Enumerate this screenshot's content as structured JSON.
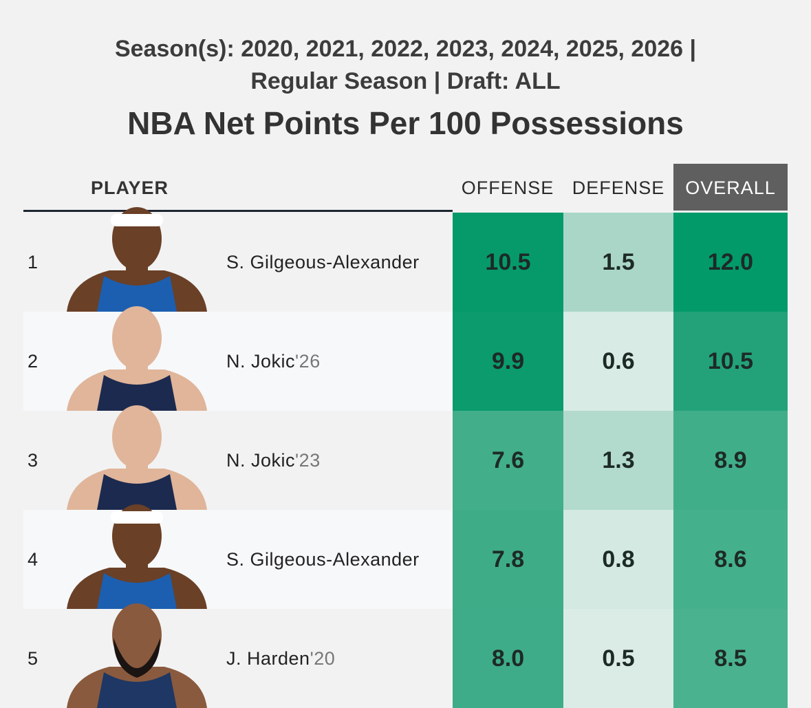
{
  "header": {
    "subtitle_line1": "Season(s): 2020, 2021, 2022, 2023, 2024, 2025, 2026 |",
    "subtitle_line2": "Regular Season | Draft: ALL",
    "title": "NBA Net Points Per 100 Possessions"
  },
  "columns": {
    "player": "PLAYER",
    "offense": "OFFENSE",
    "defense": "DEFENSE",
    "overall": "OVERALL"
  },
  "rows": [
    {
      "rank": "1",
      "name": "S. Gilgeous-Alexander",
      "year": "",
      "offense": "10.5",
      "defense": "1.5",
      "overall": "12.0",
      "avatar_icon": "player-headshot-icon"
    },
    {
      "rank": "2",
      "name": "N. Jokic",
      "year": "'26",
      "offense": "9.9",
      "defense": "0.6",
      "overall": "10.5",
      "avatar_icon": "player-headshot-icon"
    },
    {
      "rank": "3",
      "name": "N. Jokic",
      "year": "'23",
      "offense": "7.6",
      "defense": "1.3",
      "overall": "8.9",
      "avatar_icon": "player-headshot-icon"
    },
    {
      "rank": "4",
      "name": "S. Gilgeous-Alexander",
      "year": "",
      "offense": "7.8",
      "defense": "0.8",
      "overall": "8.6",
      "avatar_icon": "player-headshot-icon"
    },
    {
      "rank": "5",
      "name": "J. Harden",
      "year": "'20",
      "offense": "8.0",
      "defense": "0.5",
      "overall": "8.5",
      "avatar_icon": "player-headshot-icon"
    }
  ],
  "colors": {
    "row_band_light": "#f7f8fa",
    "row_band_dark": "#f2f2f2",
    "offense_cells": [
      "#069a6b",
      "#0b9b6d",
      "#42ae8a",
      "#3fac88",
      "#3eac88"
    ],
    "defense_cells": [
      "#a9d6c7",
      "#d8ebe5",
      "#b2dacd",
      "#d3e9e2",
      "#dbece7"
    ],
    "overall_cells": [
      "#039a6a",
      "#23a27a",
      "#41ae8a",
      "#45b08c",
      "#4bb28f"
    ],
    "overall_header_bg": "#5f5f5f"
  }
}
